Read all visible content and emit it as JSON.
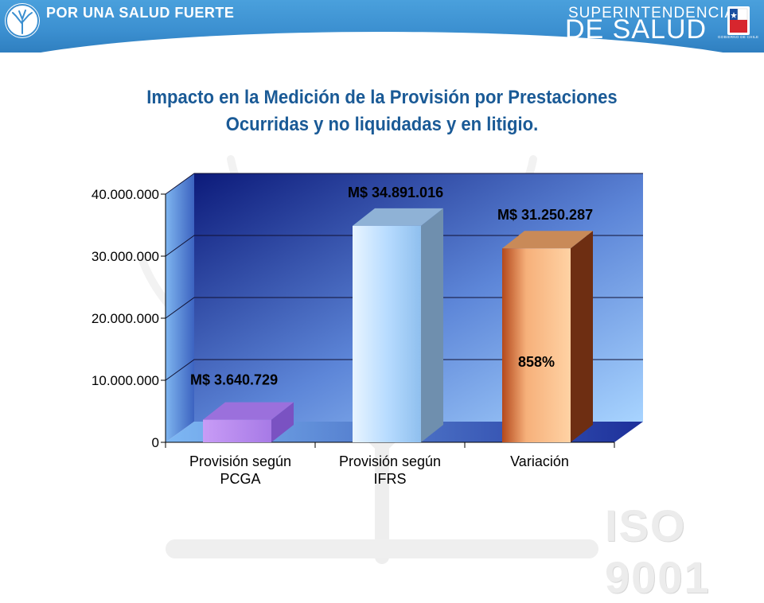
{
  "header": {
    "slogan": "POR UNA SALUD FUERTE",
    "org_line1": "SUPERINTENDENCIA",
    "org_line2": "DE SALUD",
    "gov_label": "GOBIERNO DE CHILE",
    "bar_color": "#3b8fd0"
  },
  "title_line1": "Impacto en la Medición de la Provisión por Prestaciones",
  "title_line2": "Ocurridas y no liquidadas y en litigio.",
  "watermark_text": "ISO 9001",
  "chart_data": {
    "type": "bar",
    "categories": [
      "Provisión según PCGA",
      "Provisión según IFRS",
      "Variación"
    ],
    "category_lines": [
      [
        "Provisión según",
        "PCGA"
      ],
      [
        "Provisión según",
        "IFRS"
      ],
      [
        "Variación"
      ]
    ],
    "values": [
      3640729,
      34891016,
      31250287
    ],
    "data_labels": [
      "M$ 3.640.729",
      "M$ 34.891.016",
      "M$ 31.250.287"
    ],
    "annotation": "858%",
    "y_ticks": [
      0,
      10000000,
      20000000,
      30000000,
      40000000
    ],
    "y_tick_labels": [
      "0",
      "10.000.000",
      "20.000.000",
      "30.000.000",
      "40.000.000"
    ],
    "ylim": [
      0,
      40000000
    ],
    "grid": true,
    "bar_colors": [
      "#b98cf0",
      "#c8e4ff",
      "#f2a676"
    ]
  }
}
